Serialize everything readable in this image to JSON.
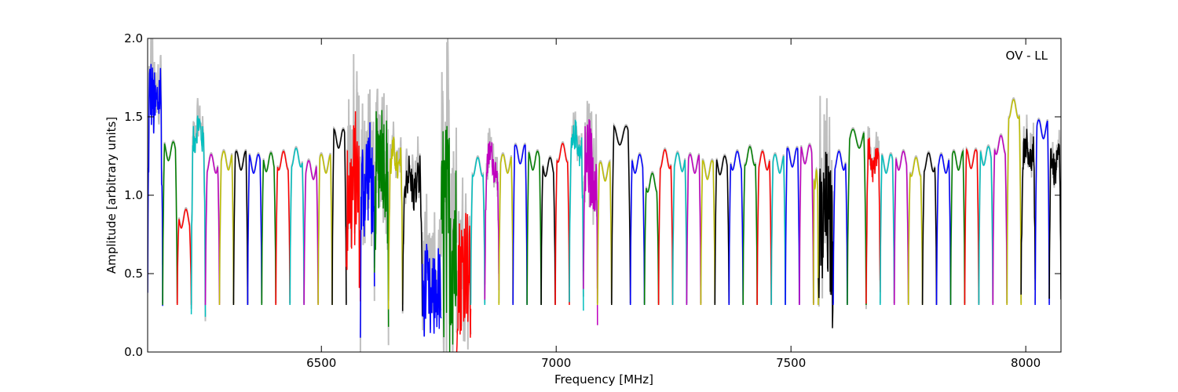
{
  "chart_data": {
    "type": "line",
    "xlabel": "Frequency [MHz]",
    "ylabel": "Amplitude [arbitrary units]",
    "annotation": "OV - LL",
    "xlim": [
      6130,
      8075
    ],
    "ylim": [
      0.0,
      2.0
    ],
    "x_ticks": [
      6500,
      7000,
      7500,
      8000
    ],
    "x_tick_labels": [
      "6500",
      "7000",
      "7500",
      "8000"
    ],
    "y_ticks": [
      0.0,
      0.5,
      1.0,
      1.5,
      2.0
    ],
    "y_tick_labels": [
      "0.0",
      "0.5",
      "1.0",
      "1.5",
      "2.0"
    ],
    "grid": false,
    "background_color": "#bfbfbf",
    "channel_colors": [
      "#0000ff",
      "#008000",
      "#ff0000",
      "#00bfbf",
      "#bf00bf",
      "#bfbf00",
      "#000000"
    ],
    "channels": [
      {
        "start": 6130,
        "end": 6162,
        "peak": 1.6,
        "color": "#0000ff",
        "noisy": 0.25
      },
      {
        "start": 6162,
        "end": 6193,
        "peak": 1.28,
        "color": "#008000",
        "noisy": 0.0
      },
      {
        "start": 6193,
        "end": 6223,
        "peak": 0.85,
        "color": "#ff0000",
        "noisy": 0.0
      },
      {
        "start": 6223,
        "end": 6253,
        "peak": 1.4,
        "color": "#00bfbf",
        "noisy": 0.1
      },
      {
        "start": 6253,
        "end": 6283,
        "peak": 1.2,
        "color": "#bf00bf",
        "noisy": 0.0
      },
      {
        "start": 6283,
        "end": 6313,
        "peak": 1.22,
        "color": "#bfbf00",
        "noisy": 0.0
      },
      {
        "start": 6313,
        "end": 6343,
        "peak": 1.22,
        "color": "#000000",
        "noisy": 0.0
      },
      {
        "start": 6343,
        "end": 6373,
        "peak": 1.2,
        "color": "#0000ff",
        "noisy": 0.0
      },
      {
        "start": 6373,
        "end": 6403,
        "peak": 1.21,
        "color": "#008000",
        "noisy": 0.0
      },
      {
        "start": 6403,
        "end": 6433,
        "peak": 1.22,
        "color": "#ff0000",
        "noisy": 0.0
      },
      {
        "start": 6433,
        "end": 6463,
        "peak": 1.24,
        "color": "#00bfbf",
        "noisy": 0.0
      },
      {
        "start": 6463,
        "end": 6493,
        "peak": 1.16,
        "color": "#bf00bf",
        "noisy": 0.0
      },
      {
        "start": 6493,
        "end": 6523,
        "peak": 1.2,
        "color": "#bfbf00",
        "noisy": 0.0
      },
      {
        "start": 6523,
        "end": 6553,
        "peak": 1.36,
        "color": "#000000",
        "noisy": 0.0
      },
      {
        "start": 6553,
        "end": 6583,
        "peak": 1.05,
        "color": "#ff0000",
        "noisy": 0.45
      },
      {
        "start": 6583,
        "end": 6613,
        "peak": 1.1,
        "color": "#0000ff",
        "noisy": 0.35
      },
      {
        "start": 6613,
        "end": 6643,
        "peak": 1.25,
        "color": "#008000",
        "noisy": 0.35
      },
      {
        "start": 6643,
        "end": 6673,
        "peak": 1.22,
        "color": "#bfbf00",
        "noisy": 0.1
      },
      {
        "start": 6673,
        "end": 6715,
        "peak": 1.08,
        "color": "#000000",
        "noisy": 0.15
      },
      {
        "start": 6715,
        "end": 6755,
        "peak": 0.35,
        "color": "#0000ff",
        "noisy": 0.3
      },
      {
        "start": 6755,
        "end": 6788,
        "peak": 0.75,
        "color": "#008000",
        "noisy": 0.8
      },
      {
        "start": 6788,
        "end": 6818,
        "peak": 0.55,
        "color": "#ff0000",
        "noisy": 0.4
      },
      {
        "start": 6818,
        "end": 6848,
        "peak": 1.18,
        "color": "#00bfbf",
        "noisy": 0.0
      },
      {
        "start": 6848,
        "end": 6878,
        "peak": 1.22,
        "color": "#bf00bf",
        "noisy": 0.1
      },
      {
        "start": 6878,
        "end": 6908,
        "peak": 1.2,
        "color": "#bfbf00",
        "noisy": 0.0
      },
      {
        "start": 6908,
        "end": 6938,
        "peak": 1.26,
        "color": "#0000ff",
        "noisy": 0.0
      },
      {
        "start": 6938,
        "end": 6968,
        "peak": 1.22,
        "color": "#008000",
        "noisy": 0.0
      },
      {
        "start": 6968,
        "end": 6998,
        "peak": 1.18,
        "color": "#000000",
        "noisy": 0.0
      },
      {
        "start": 6998,
        "end": 7028,
        "peak": 1.27,
        "color": "#ff0000",
        "noisy": 0.0
      },
      {
        "start": 7028,
        "end": 7058,
        "peak": 1.33,
        "color": "#00bfbf",
        "noisy": 0.1
      },
      {
        "start": 7058,
        "end": 7088,
        "peak": 1.2,
        "color": "#bf00bf",
        "noisy": 0.3
      },
      {
        "start": 7088,
        "end": 7118,
        "peak": 1.15,
        "color": "#bfbf00",
        "noisy": 0.0
      },
      {
        "start": 7118,
        "end": 7158,
        "peak": 1.38,
        "color": "#000000",
        "noisy": 0.0
      },
      {
        "start": 7158,
        "end": 7188,
        "peak": 1.2,
        "color": "#0000ff",
        "noisy": 0.0
      },
      {
        "start": 7188,
        "end": 7218,
        "peak": 1.08,
        "color": "#008000",
        "noisy": 0.0
      },
      {
        "start": 7218,
        "end": 7248,
        "peak": 1.23,
        "color": "#ff0000",
        "noisy": 0.0
      },
      {
        "start": 7248,
        "end": 7278,
        "peak": 1.21,
        "color": "#00bfbf",
        "noisy": 0.0
      },
      {
        "start": 7278,
        "end": 7308,
        "peak": 1.2,
        "color": "#bf00bf",
        "noisy": 0.0
      },
      {
        "start": 7308,
        "end": 7338,
        "peak": 1.16,
        "color": "#bfbf00",
        "noisy": 0.0
      },
      {
        "start": 7338,
        "end": 7368,
        "peak": 1.19,
        "color": "#000000",
        "noisy": 0.0
      },
      {
        "start": 7368,
        "end": 7398,
        "peak": 1.22,
        "color": "#0000ff",
        "noisy": 0.0
      },
      {
        "start": 7398,
        "end": 7428,
        "peak": 1.25,
        "color": "#008000",
        "noisy": 0.0
      },
      {
        "start": 7428,
        "end": 7458,
        "peak": 1.22,
        "color": "#ff0000",
        "noisy": 0.0
      },
      {
        "start": 7458,
        "end": 7488,
        "peak": 1.2,
        "color": "#00bfbf",
        "noisy": 0.0
      },
      {
        "start": 7488,
        "end": 7518,
        "peak": 1.24,
        "color": "#0000ff",
        "noisy": 0.0
      },
      {
        "start": 7518,
        "end": 7548,
        "peak": 1.26,
        "color": "#bf00bf",
        "noisy": 0.0
      },
      {
        "start": 7548,
        "end": 7558,
        "peak": 1.1,
        "color": "#bfbf00",
        "noisy": 0.0
      },
      {
        "start": 7558,
        "end": 7590,
        "peak": 0.8,
        "color": "#000000",
        "noisy": 0.45
      },
      {
        "start": 7590,
        "end": 7620,
        "peak": 1.22,
        "color": "#0000ff",
        "noisy": 0.0
      },
      {
        "start": 7620,
        "end": 7660,
        "peak": 1.36,
        "color": "#008000",
        "noisy": 0.0
      },
      {
        "start": 7660,
        "end": 7690,
        "peak": 1.22,
        "color": "#ff0000",
        "noisy": 0.1
      },
      {
        "start": 7690,
        "end": 7720,
        "peak": 1.2,
        "color": "#00bfbf",
        "noisy": 0.0
      },
      {
        "start": 7720,
        "end": 7750,
        "peak": 1.22,
        "color": "#bf00bf",
        "noisy": 0.0
      },
      {
        "start": 7750,
        "end": 7780,
        "peak": 1.18,
        "color": "#bfbf00",
        "noisy": 0.0
      },
      {
        "start": 7780,
        "end": 7810,
        "peak": 1.21,
        "color": "#000000",
        "noisy": 0.0
      },
      {
        "start": 7810,
        "end": 7840,
        "peak": 1.2,
        "color": "#0000ff",
        "noisy": 0.0
      },
      {
        "start": 7840,
        "end": 7870,
        "peak": 1.22,
        "color": "#008000",
        "noisy": 0.0
      },
      {
        "start": 7870,
        "end": 7900,
        "peak": 1.23,
        "color": "#ff0000",
        "noisy": 0.0
      },
      {
        "start": 7900,
        "end": 7930,
        "peak": 1.25,
        "color": "#00bfbf",
        "noisy": 0.0
      },
      {
        "start": 7930,
        "end": 7960,
        "peak": 1.32,
        "color": "#bf00bf",
        "noisy": 0.0
      },
      {
        "start": 7960,
        "end": 7990,
        "peak": 1.55,
        "color": "#bfbf00",
        "noisy": 0.0
      },
      {
        "start": 7990,
        "end": 8020,
        "peak": 1.28,
        "color": "#000000",
        "noisy": 0.1
      },
      {
        "start": 8020,
        "end": 8050,
        "peak": 1.42,
        "color": "#0000ff",
        "noisy": 0.0
      },
      {
        "start": 8050,
        "end": 8075,
        "peak": 1.2,
        "color": "#000000",
        "noisy": 0.1
      }
    ]
  }
}
